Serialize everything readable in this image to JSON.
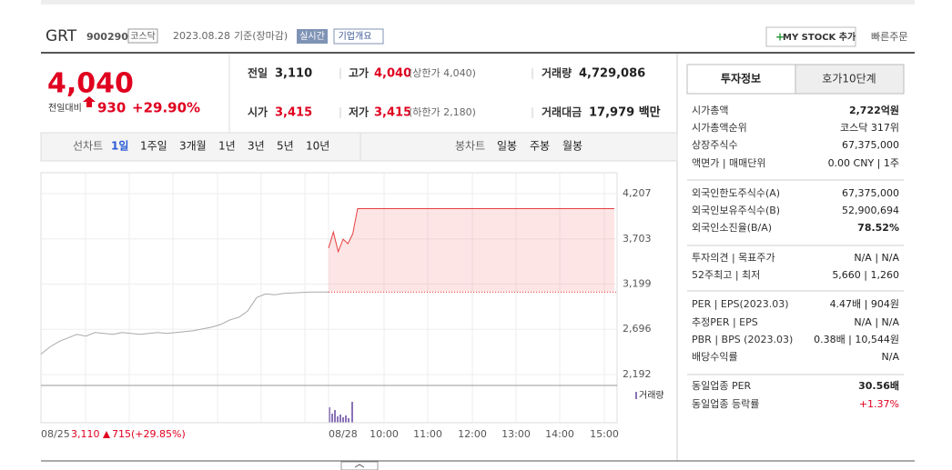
{
  "header": {
    "name": "GRT",
    "code": "900290",
    "market": "코스닥",
    "date": "2023.08.28",
    "basis": "기준(장마감)",
    "realtime": "실시간",
    "overview": "기업개요",
    "mystock": "MY STOCK 추가",
    "quick_order": "빠른주문"
  },
  "price": {
    "current": "4,040",
    "change_label": "전일대비",
    "change": "930",
    "rate": "+29.90%"
  },
  "summary": {
    "rows": [
      [
        {
          "label": "전일",
          "value": "3,110"
        },
        {
          "label": "고가",
          "value": "4,040",
          "note": "(상한가 4,040)"
        },
        {
          "label": "거래량",
          "value": "4,729,086"
        }
      ],
      [
        {
          "label": "시가",
          "value": "3,415"
        },
        {
          "label": "저가",
          "value": "3,415",
          "note": "(하한가 2,180)"
        },
        {
          "label": "거래대금",
          "value": "17,979 백만"
        }
      ]
    ]
  },
  "tabs": {
    "line_label": "선차트",
    "line": [
      "1일",
      "1주일",
      "3개월",
      "1년",
      "3년",
      "5년",
      "10년"
    ],
    "candle_label": "봉차트",
    "candle": [
      "일봉",
      "주봉",
      "월봉"
    ]
  },
  "chart_data": {
    "type": "line",
    "ylim": [
      2111,
      4440
    ],
    "yticks": [
      {
        "value": 4207,
        "label": "4,207"
      },
      {
        "value": 3703,
        "label": "3,703"
      },
      {
        "value": 3199,
        "label": "3,199"
      },
      {
        "value": 2696,
        "label": "2,696"
      },
      {
        "value": 2192,
        "label": "2,192"
      }
    ],
    "xticks": [
      "08/25",
      "08/28",
      "10:00",
      "11:00",
      "12:00",
      "13:00",
      "14:00",
      "15:00"
    ],
    "base": {
      "value": 3110,
      "label": "3,110"
    },
    "series": [
      {
        "color": "#aaaaaa",
        "values": [
          2420,
          2500,
          2560,
          2600,
          2640,
          2620,
          2660,
          2650,
          2640,
          2660,
          2650,
          2640,
          2650,
          2660,
          2650,
          2660,
          2670,
          2680,
          2700,
          2720,
          2750,
          2800,
          2830,
          2900,
          3050,
          3090,
          3080,
          3095,
          3100,
          3105,
          3110,
          3110,
          3110
        ]
      },
      {
        "color": "#e63e3e",
        "values": [
          3600,
          3780,
          3560,
          3700,
          3650,
          3760,
          4040,
          4040,
          4040,
          4040,
          4040,
          4040,
          4040,
          4040,
          4040,
          4040,
          4040,
          4040,
          4040,
          4040,
          4040,
          4040,
          4040,
          4040,
          4040,
          4040,
          4040,
          4040,
          4040,
          4040,
          4040,
          4040,
          4040,
          4040,
          4040,
          4040,
          4040,
          4040,
          4040,
          4040,
          4040,
          4040,
          4040,
          4040,
          4040,
          4040,
          4040,
          4040,
          4040,
          4040,
          4040,
          4040,
          4040,
          4040,
          4040,
          4040,
          4040,
          4040,
          4040,
          4040
        ]
      }
    ],
    "legend": "거래량",
    "footer": {
      "change": "715",
      "rate": "(+29.85%)"
    }
  },
  "invest": {
    "tabs": [
      "투자정보",
      "호가10단계"
    ],
    "groups": [
      [
        {
          "label": "시가총액",
          "value": "2,722억원"
        },
        {
          "label": "시가총액순위",
          "value": "코스닥 317위"
        },
        {
          "label": "상장주식수",
          "value": "67,375,000"
        },
        {
          "label": "액면가 | 매매단위",
          "value": "0.00 CNY | 1주"
        }
      ],
      [
        {
          "label": "외국인한도주식수(A)",
          "value": "67,375,000"
        },
        {
          "label": "외국인보유주식수(B)",
          "value": "52,900,694"
        },
        {
          "label": "외국인소진율(B/A)",
          "value": "78.52%"
        }
      ],
      [
        {
          "label": "투자의견 | 목표주가",
          "value": "N/A | N/A"
        },
        {
          "label": "52주최고 | 최저",
          "value": "5,660 | 1,260"
        }
      ],
      [
        {
          "label": "PER | EPS(2023.03)",
          "value": "4.47배 | 904원"
        },
        {
          "label": "추정PER | EPS",
          "value": "N/A | N/A"
        },
        {
          "label": "PBR | BPS (2023.03)",
          "value": "0.38배 | 10,544원"
        },
        {
          "label": "배당수익률",
          "value": "N/A"
        }
      ],
      [
        {
          "label": "동일업종 PER",
          "value": "30.56배"
        },
        {
          "label": "동일업종 등락률",
          "value": "+1.37%"
        }
      ]
    ]
  }
}
